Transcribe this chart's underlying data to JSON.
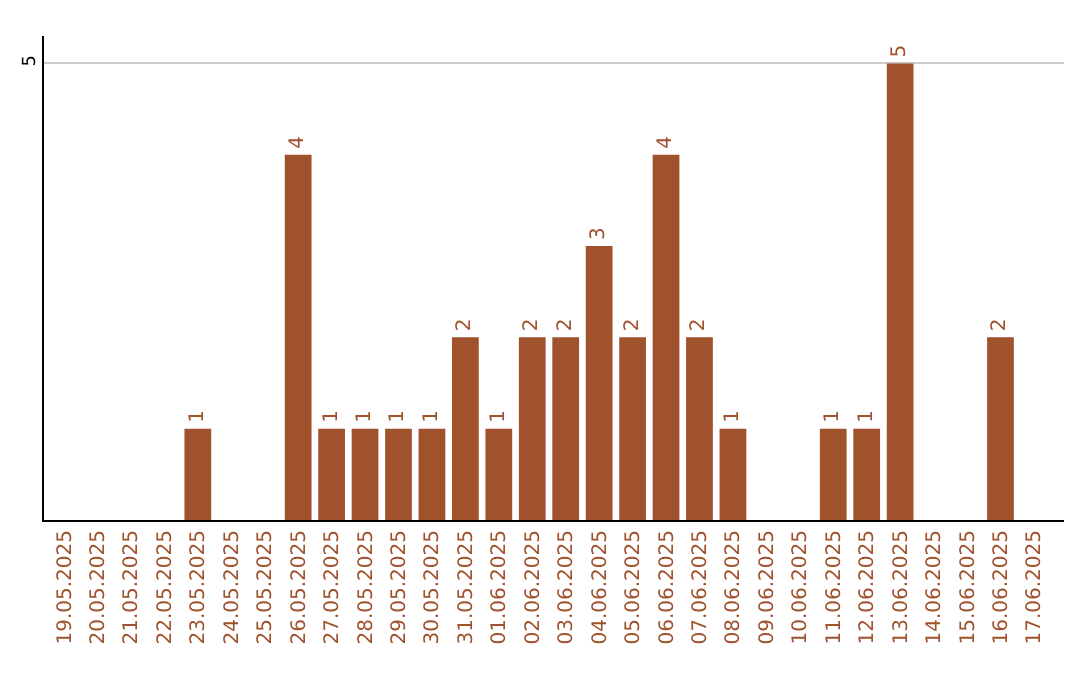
{
  "chart_data": {
    "type": "bar",
    "categories": [
      "19.05.2025",
      "20.05.2025",
      "21.05.2025",
      "22.05.2025",
      "23.05.2025",
      "24.05.2025",
      "25.05.2025",
      "26.05.2025",
      "27.05.2025",
      "28.05.2025",
      "29.05.2025",
      "30.05.2025",
      "31.05.2025",
      "01.06.2025",
      "02.06.2025",
      "03.06.2025",
      "04.06.2025",
      "05.06.2025",
      "06.06.2025",
      "07.06.2025",
      "08.06.2025",
      "09.06.2025",
      "10.06.2025",
      "11.06.2025",
      "12.06.2025",
      "13.06.2025",
      "14.06.2025",
      "15.06.2025",
      "16.06.2025",
      "17.06.2025"
    ],
    "values": [
      0,
      0,
      0,
      0,
      1,
      0,
      0,
      4,
      1,
      1,
      1,
      1,
      2,
      1,
      2,
      2,
      3,
      2,
      4,
      2,
      1,
      0,
      0,
      1,
      1,
      5,
      0,
      0,
      2,
      0
    ],
    "value_labels": [
      null,
      null,
      null,
      null,
      "1",
      null,
      null,
      "4",
      "1",
      "1",
      "1",
      "1",
      "2",
      "1",
      "2",
      "2",
      "3",
      "2",
      "4",
      "2",
      "1",
      null,
      null,
      "1",
      "1",
      "5",
      null,
      null,
      "2",
      null
    ],
    "color": "#a0522d",
    "ylim": [
      0,
      5.3
    ],
    "yticks": [
      5
    ],
    "grid": "y"
  }
}
